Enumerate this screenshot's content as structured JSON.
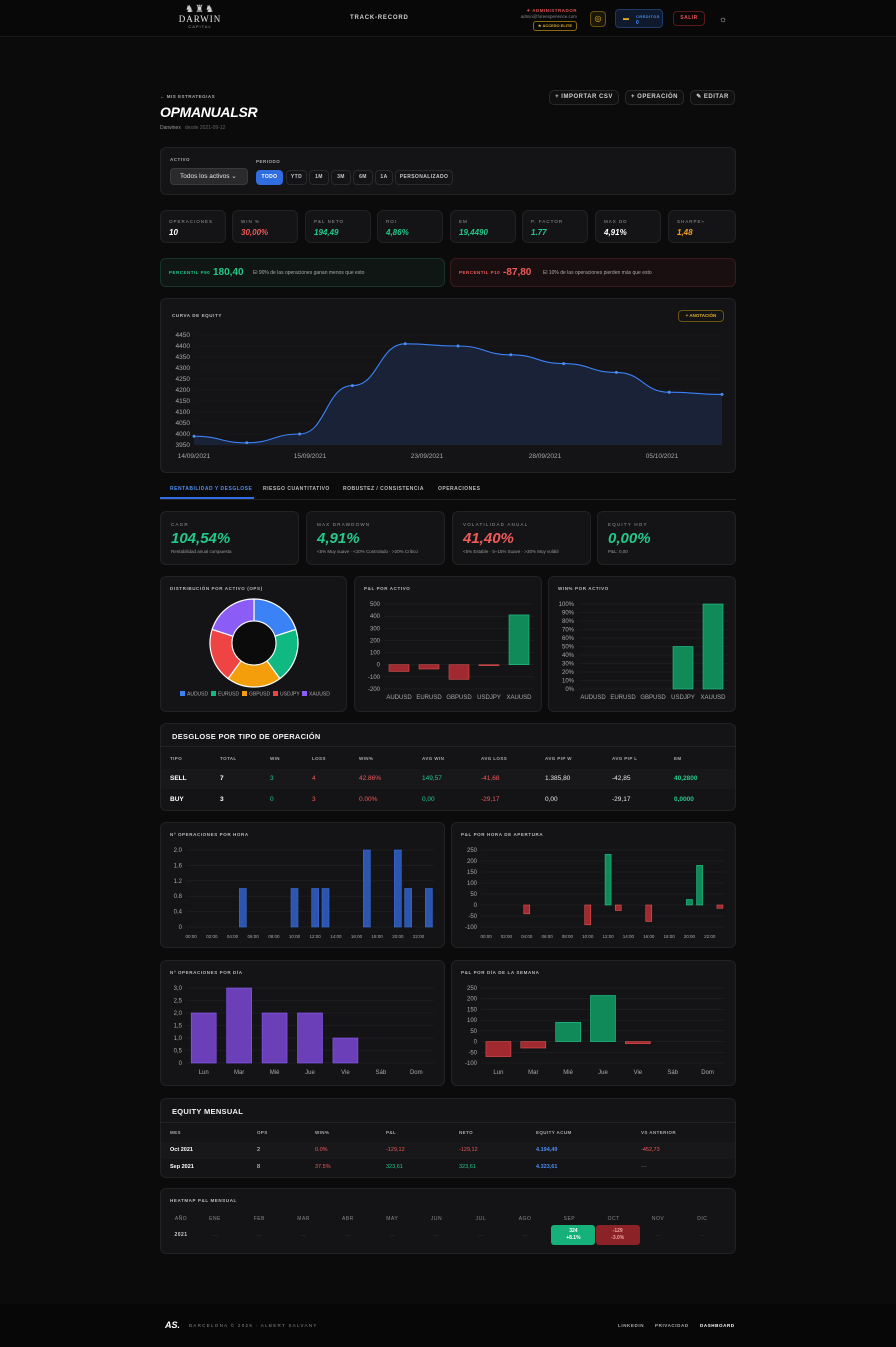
{
  "nav": {
    "brand_line1": "DARWIN",
    "brand_line2": "CAPITAL",
    "link": "TRACK-RECORD",
    "role": "✦ ADMINISTRADOR",
    "email": "admin@foreexperience.com",
    "elite": "★ ACCESO ELITE",
    "credits_label": "CRÉDITOS",
    "credits_value": "0",
    "exit": "SALIR"
  },
  "header": {
    "back": "← MIS ESTRATEGIAS",
    "title": "OPMANUALSR",
    "platform": "Darwinex",
    "since": "desde 2021-09-12",
    "import_btn": "+ IMPORTAR CSV",
    "op_btn": "+ OPERACIÓN",
    "edit_btn": "✎ EDITAR"
  },
  "filters": {
    "asset_label": "ACTIVO",
    "asset_value": "Todos los activos ⌄",
    "period_label": "PERIODO",
    "periods": [
      "TODO",
      "YTD",
      "1M",
      "3M",
      "6M",
      "1A",
      "PERSONALIZADO"
    ]
  },
  "kpis": [
    {
      "label": "OPERACIONES",
      "value": "10",
      "color": "#ffffff"
    },
    {
      "label": "WIN %",
      "value": "30,00%",
      "color": "#f05a5a"
    },
    {
      "label": "P&L NETO",
      "value": "194,49",
      "color": "#22c98a"
    },
    {
      "label": "ROI",
      "value": "4,86%",
      "color": "#22c98a"
    },
    {
      "label": "EM",
      "value": "19,4490",
      "color": "#22c98a"
    },
    {
      "label": "P. FACTOR",
      "value": "1.77",
      "color": "#22c98a"
    },
    {
      "label": "MAX DD",
      "value": "4,91%",
      "color": "#ffffff"
    },
    {
      "label": "SHARPE≈",
      "value": "1,48",
      "color": "#f0a020"
    }
  ],
  "percentiles": {
    "p90_label": "PERCENTIL P90",
    "p90_value": "180,40",
    "p90_text": "El 90% de las operaciones ganan menos que esto",
    "p10_label": "PERCENTIL P10",
    "p10_value": "-87,80",
    "p10_text": "El 10% de las operaciones pierden más que esto"
  },
  "equity": {
    "label": "CURVA DE EQUITY",
    "annotation_btn": "+ ANOTACIÓN"
  },
  "tabs": [
    "RENTABILIDAD Y DESGLOSE",
    "RIESGO CUANTITATIVO",
    "ROBUSTEZ / CONSISTENCIA",
    "OPERACIONES"
  ],
  "big_kpis": [
    {
      "label": "CAGR",
      "value": "104,54%",
      "sub": "Rentabilidad anual compuesta",
      "color": "#22c98a"
    },
    {
      "label": "MAX DRAWDOWN",
      "value": "4,91%",
      "sub": "<5% Muy suave · <10% Controlado · >20% Crítico",
      "color": "#22c98a"
    },
    {
      "label": "VOLATILIDAD ANUAL",
      "value": "41,40%",
      "sub": "<5% Estable · 5–15% Suave · >30% Muy volátil",
      "color": "#f05a5a"
    },
    {
      "label": "EQUITY HOY",
      "value": "0,00%",
      "sub": "P&L: 0,00",
      "color": "#22c98a"
    }
  ],
  "mini_charts": {
    "dist_label": "DISTRIBUCIÓN POR ACTIVO (OPS)",
    "pnl_label": "P&L POR ACTIVO",
    "win_label": "WIN% POR ACTIVO"
  },
  "breakdown": {
    "title": "DESGLOSE POR TIPO DE OPERACIÓN",
    "headers": [
      "TIPO",
      "TOTAL",
      "WIN",
      "LOSS",
      "WIN%",
      "AVG WIN",
      "AVG LOSS",
      "AVG PIP W",
      "AVG PIP L",
      "EM"
    ],
    "rows": [
      [
        "SELL",
        "7",
        "3",
        "4",
        "42.86%",
        "149,57",
        "-41,68",
        "1.385,80",
        "-42,85",
        "40,2800"
      ],
      [
        "BUY",
        "3",
        "0",
        "3",
        "0.00%",
        "0,00",
        "-29,17",
        "0,00",
        "-29,17",
        "0,0000"
      ]
    ]
  },
  "hour_charts": {
    "ops_label": "Nº OPERACIONES POR HORA",
    "pnl_label": "P&L POR HORA DE APERTURA"
  },
  "day_charts": {
    "ops_label": "Nº OPERACIONES POR DÍA",
    "pnl_label": "P&L POR DÍA DE LA SEMANA"
  },
  "monthly": {
    "title": "EQUITY MENSUAL",
    "headers": [
      "MES",
      "OPS",
      "WIN%",
      "P&L",
      "NETO",
      "EQUITY ACUM",
      "VS ANTERIOR"
    ],
    "rows": [
      [
        "Oct 2021",
        "2",
        "0.0%",
        "-129,12",
        "-129,12",
        "4.194,49",
        "-452,73"
      ],
      [
        "Sep 2021",
        "8",
        "37.5%",
        "323,61",
        "323,61",
        "4.323,61",
        "—"
      ]
    ]
  },
  "heatmap": {
    "label": "HEATMAP P&L MENSUAL",
    "headers": [
      "AÑO",
      "ENE",
      "FEB",
      "MAR",
      "ABR",
      "MAY",
      "JUN",
      "JUL",
      "AGO",
      "SEP",
      "OCT",
      "NOV",
      "DIC"
    ],
    "year": "2021",
    "sep_value": "324",
    "sep_pct": "+8.1%",
    "oct_value": "-129",
    "oct_pct": "-3.0%",
    "empty": "—"
  },
  "footer": {
    "logo": "AS.",
    "text": "BARCELONA © 2026 · ALBERT SALVANY",
    "links": [
      "LINKEDIN",
      "PRIVACIDAD",
      "DASHBOARD"
    ]
  },
  "chart_data": [
    {
      "type": "area",
      "name": "equity",
      "x": [
        "14/09/2021",
        "",
        "15/09/2021",
        "",
        "",
        "23/09/2021",
        "",
        "28/09/2021",
        "",
        "05/10/2021",
        ""
      ],
      "values": [
        3990,
        3960,
        4000,
        4220,
        4410,
        4400,
        4360,
        4320,
        4280,
        4190,
        4180
      ],
      "xticks": [
        "14/09/2021",
        "15/09/2021",
        "23/09/2021",
        "28/09/2021",
        "05/10/2021"
      ],
      "yticks": [
        "4450",
        "4400",
        "4350",
        "4300",
        "4250",
        "4200",
        "4150",
        "4100",
        "4050",
        "4000",
        "3950"
      ],
      "ylim": [
        3950,
        4450
      ]
    },
    {
      "type": "pie",
      "name": "dist",
      "categories": [
        "AUDUSD",
        "EURUSD",
        "GBPUSD",
        "USDJPY",
        "XAUUSD"
      ],
      "values": [
        2,
        2,
        2,
        2,
        2
      ],
      "colors": [
        "#3b82f6",
        "#10b981",
        "#f59e0b",
        "#ef4444",
        "#8b5cf6"
      ]
    },
    {
      "type": "bar",
      "name": "pnl_asset",
      "categories": [
        "AUDUSD",
        "EURUSD",
        "GBPUSD",
        "USDJPY",
        "XAUUSD"
      ],
      "values": [
        -55,
        -35,
        -120,
        -8,
        410
      ],
      "yticks": [
        "500",
        "400",
        "300",
        "200",
        "100",
        "0",
        "-100",
        "-200"
      ],
      "ylim": [
        -200,
        500
      ]
    },
    {
      "type": "bar",
      "name": "win_asset",
      "categories": [
        "AUDUSD",
        "EURUSD",
        "GBPUSD",
        "USDJPY",
        "XAUUSD"
      ],
      "values": [
        0,
        0,
        0,
        50,
        100
      ],
      "yticks": [
        "100%",
        "90%",
        "80%",
        "70%",
        "60%",
        "50%",
        "40%",
        "30%",
        "20%",
        "10%",
        "0%"
      ],
      "ylim": [
        0,
        100
      ]
    },
    {
      "type": "bar",
      "name": "ops_hour",
      "categories": [
        "00:00",
        "01",
        "02:00",
        "03",
        "04:00",
        "05",
        "06:00",
        "07",
        "08:00",
        "09",
        "10:00",
        "11",
        "12:00",
        "13",
        "14:00",
        "15",
        "16:00",
        "17",
        "18:00",
        "19",
        "20:00",
        "21",
        "22:00",
        "23"
      ],
      "xticks": [
        "00:00",
        "02:00",
        "04:00",
        "06:00",
        "08:00",
        "10:00",
        "12:00",
        "14:00",
        "16:00",
        "18:00",
        "20:00",
        "22:00"
      ],
      "values": [
        0,
        0,
        0,
        0,
        0,
        1,
        0,
        0,
        0,
        0,
        1,
        0,
        1,
        1,
        0,
        0,
        0,
        2,
        0,
        0,
        2,
        1,
        0,
        1
      ],
      "yticks": [
        "2.0",
        "1.6",
        "1.2",
        "0.8",
        "0.4",
        "0"
      ],
      "ylim": [
        0,
        2
      ]
    },
    {
      "type": "bar",
      "name": "pnl_hour",
      "categories": [
        "00:00",
        "01",
        "02:00",
        "03",
        "04:00",
        "05",
        "06:00",
        "07",
        "08:00",
        "09",
        "10:00",
        "11",
        "12:00",
        "13",
        "14:00",
        "15",
        "16:00",
        "17",
        "18:00",
        "19",
        "20:00",
        "21",
        "22:00",
        "23"
      ],
      "xticks": [
        "00:00",
        "02:00",
        "04:00",
        "06:00",
        "08:00",
        "10:00",
        "12:00",
        "14:00",
        "16:00",
        "18:00",
        "20:00",
        "22:00"
      ],
      "values": [
        0,
        0,
        0,
        0,
        -40,
        0,
        0,
        0,
        0,
        0,
        -90,
        0,
        230,
        -25,
        0,
        0,
        -75,
        0,
        0,
        0,
        25,
        180,
        0,
        -15
      ],
      "yticks": [
        "250",
        "200",
        "150",
        "100",
        "50",
        "0",
        "-50",
        "-100"
      ],
      "ylim": [
        -100,
        250
      ]
    },
    {
      "type": "bar",
      "name": "ops_day",
      "categories": [
        "Lun",
        "Mar",
        "Mié",
        "Jue",
        "Vie",
        "Sáb",
        "Dom"
      ],
      "values": [
        2,
        3,
        2,
        2,
        1,
        0,
        0
      ],
      "yticks": [
        "3,0",
        "2,5",
        "2,0",
        "1,5",
        "1,0",
        "0,5",
        "0"
      ],
      "ylim": [
        0,
        3
      ]
    },
    {
      "type": "bar",
      "name": "pnl_day",
      "categories": [
        "Lun",
        "Mar",
        "Mié",
        "Jue",
        "Vie",
        "Sáb",
        "Dom"
      ],
      "values": [
        -70,
        -30,
        90,
        215,
        -10,
        0,
        0
      ],
      "yticks": [
        "250",
        "200",
        "150",
        "100",
        "50",
        "0",
        "-50",
        "-100"
      ],
      "ylim": [
        -100,
        250
      ]
    }
  ]
}
